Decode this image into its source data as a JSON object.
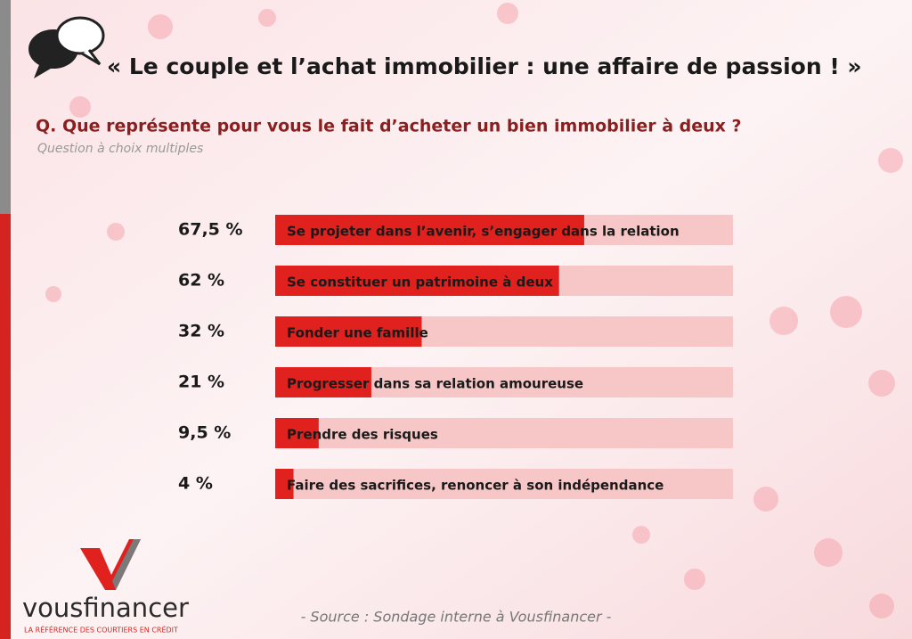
{
  "header": {
    "title": "« Le couple et l’achat immobilier : une affaire de passion ! »"
  },
  "chart_data": {
    "type": "hbar",
    "title": "Q. Que représente pour vous le fait d’acheter un bien immobilier à deux ?",
    "subtitle": "Question à choix multiples",
    "categories": [
      "Se projeter dans l’avenir, s’engager dans la relation",
      "Se constituer un patrimoine à deux",
      "Fonder une famille",
      "Progresser dans sa relation amoureuse",
      "Prendre des risques",
      "Faire des sacrifices, renoncer à son indépendance"
    ],
    "values": [
      67.5,
      62,
      32,
      21,
      9.5,
      4
    ],
    "value_labels": [
      "67,5 %",
      "62 %",
      "32 %",
      "21 %",
      "9,5 %",
      "4 %"
    ],
    "color": "#e0211d",
    "track_color": "#f7c6c6",
    "xlim": [
      0,
      100
    ]
  },
  "footer": {
    "source": "- Source : Sondage interne à Vousfinancer -",
    "brand": "vousfinancer",
    "tagline": "LA RÉFÉRENCE DES COURTIERS EN CRÉDIT"
  }
}
